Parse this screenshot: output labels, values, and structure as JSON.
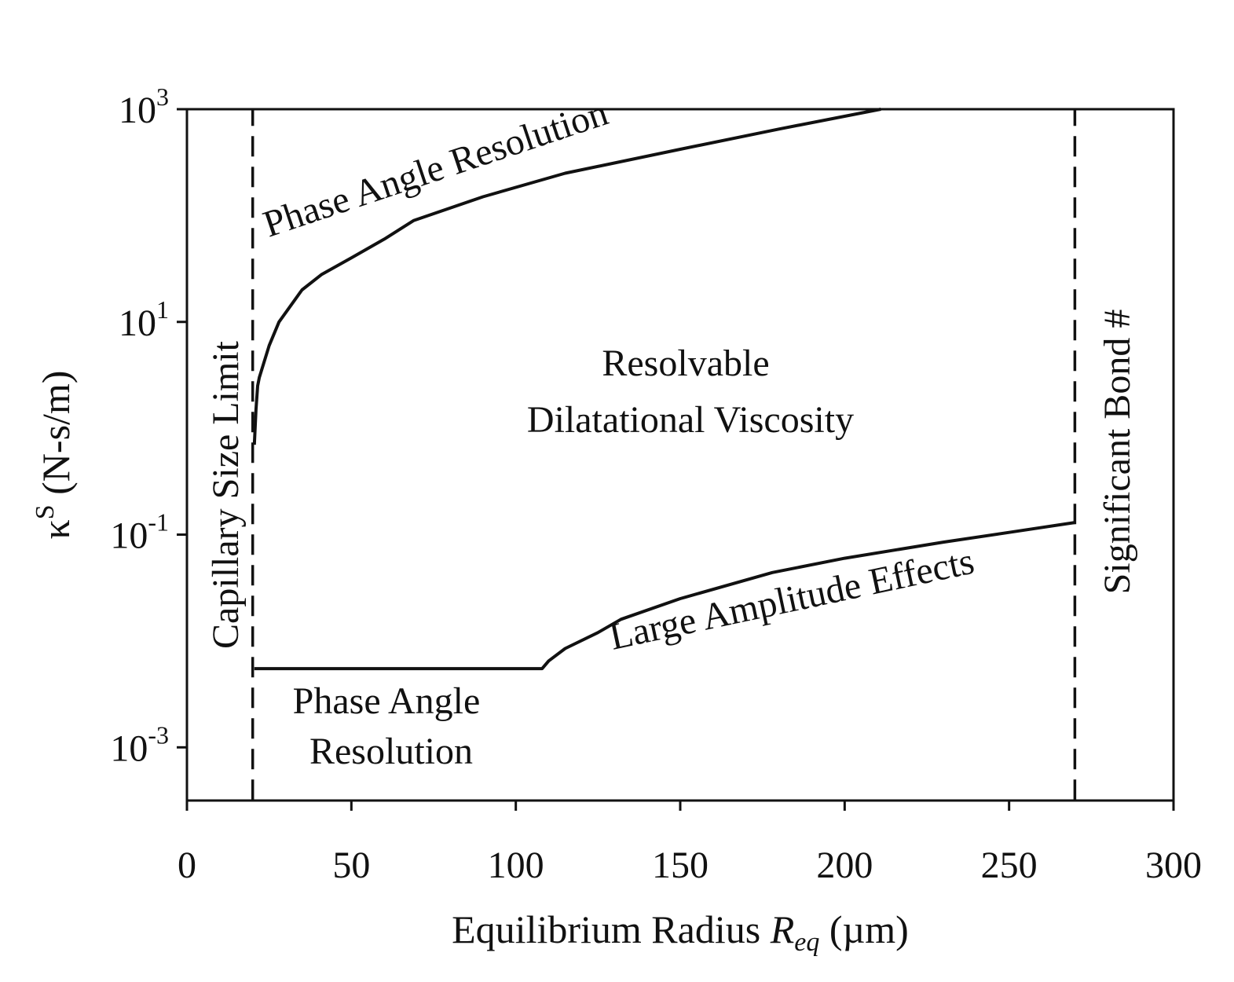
{
  "chart_data": {
    "type": "line",
    "title": "",
    "xlabel": {
      "prefix": "Equilibrium Radius ",
      "symbol": "R",
      "subscript": "eq",
      "suffix": " (µm)"
    },
    "ylabel": {
      "symbol": "κ",
      "superscript": "S",
      "suffix": " (N-s/m)"
    },
    "xlim": [
      0,
      300
    ],
    "ylim_log10": [
      -3.5,
      3
    ],
    "y_scale": "log",
    "grid": false,
    "x_ticks": [
      0,
      50,
      100,
      150,
      200,
      250,
      300
    ],
    "y_ticks": [
      {
        "base": "10",
        "exp": "3",
        "log10": 3
      },
      {
        "base": "10",
        "exp": "1",
        "log10": 1
      },
      {
        "base": "10",
        "exp": "-1",
        "log10": -1
      },
      {
        "base": "10",
        "exp": "-3",
        "log10": -3
      }
    ],
    "series": [
      {
        "style": "solid",
        "x": [
          20.5,
          21,
          21.5,
          22,
          25,
          28,
          35,
          41,
          50,
          60,
          69,
          90,
          115,
          150,
          180,
          211
        ],
        "y": [
          0.7,
          1.5,
          2.5,
          3,
          6,
          10,
          20,
          28,
          40,
          60,
          90,
          150,
          250,
          420,
          650,
          1000
        ]
      },
      {
        "style": "solid",
        "x": [
          20.5,
          108,
          110,
          115,
          125,
          132,
          150,
          178,
          200,
          230,
          250,
          270
        ],
        "y": [
          0.0055,
          0.0055,
          0.0065,
          0.0085,
          0.012,
          0.016,
          0.025,
          0.044,
          0.06,
          0.085,
          0.105,
          0.13
        ]
      },
      {
        "style": "dashed",
        "x": [
          20,
          20
        ],
        "y": [
          0.00032,
          1000
        ]
      },
      {
        "style": "dashed",
        "x": [
          270,
          270
        ],
        "y": [
          0.00032,
          1000
        ]
      }
    ],
    "annotations": [
      {
        "id": "phase-angle-top",
        "text": "Phase Angle Resolution"
      },
      {
        "id": "resolvable-1",
        "text": "Resolvable"
      },
      {
        "id": "resolvable-2",
        "text": "Dilatational Viscosity"
      },
      {
        "id": "large-amplitude",
        "text": "Large Amplitude Effects"
      },
      {
        "id": "phase-angle-bottom-1",
        "text": "Phase Angle"
      },
      {
        "id": "phase-angle-bottom-2",
        "text": "Resolution"
      },
      {
        "id": "capillary",
        "text": "Capillary Size Limit"
      },
      {
        "id": "bond",
        "text": "Significant Bond #"
      }
    ]
  }
}
